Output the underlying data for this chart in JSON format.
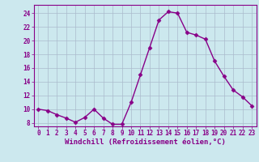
{
  "x": [
    0,
    1,
    2,
    3,
    4,
    5,
    6,
    7,
    8,
    9,
    10,
    11,
    12,
    13,
    14,
    15,
    16,
    17,
    18,
    19,
    20,
    21,
    22,
    23
  ],
  "y": [
    10,
    9.8,
    9.2,
    8.7,
    8.1,
    8.8,
    10,
    8.7,
    7.8,
    7.8,
    11,
    15,
    19,
    23,
    24.2,
    24,
    21.2,
    20.8,
    20.2,
    17,
    14.8,
    12.8,
    11.8,
    10.5
  ],
  "line_color": "#880088",
  "marker": "D",
  "marker_size": 2.5,
  "bg_color": "#cce8ee",
  "grid_color": "#aabbcc",
  "xlabel": "Windchill (Refroidissement éolien,°C)",
  "xlabel_color": "#880088",
  "tick_color": "#880088",
  "ylim": [
    7.5,
    25.2
  ],
  "yticks": [
    8,
    10,
    12,
    14,
    16,
    18,
    20,
    22,
    24
  ],
  "xticks": [
    0,
    1,
    2,
    3,
    4,
    5,
    6,
    7,
    8,
    9,
    10,
    11,
    12,
    13,
    14,
    15,
    16,
    17,
    18,
    19,
    20,
    21,
    22,
    23
  ],
  "tick_fontsize": 5.5,
  "xlabel_fontsize": 6.5,
  "linewidth": 1.0
}
